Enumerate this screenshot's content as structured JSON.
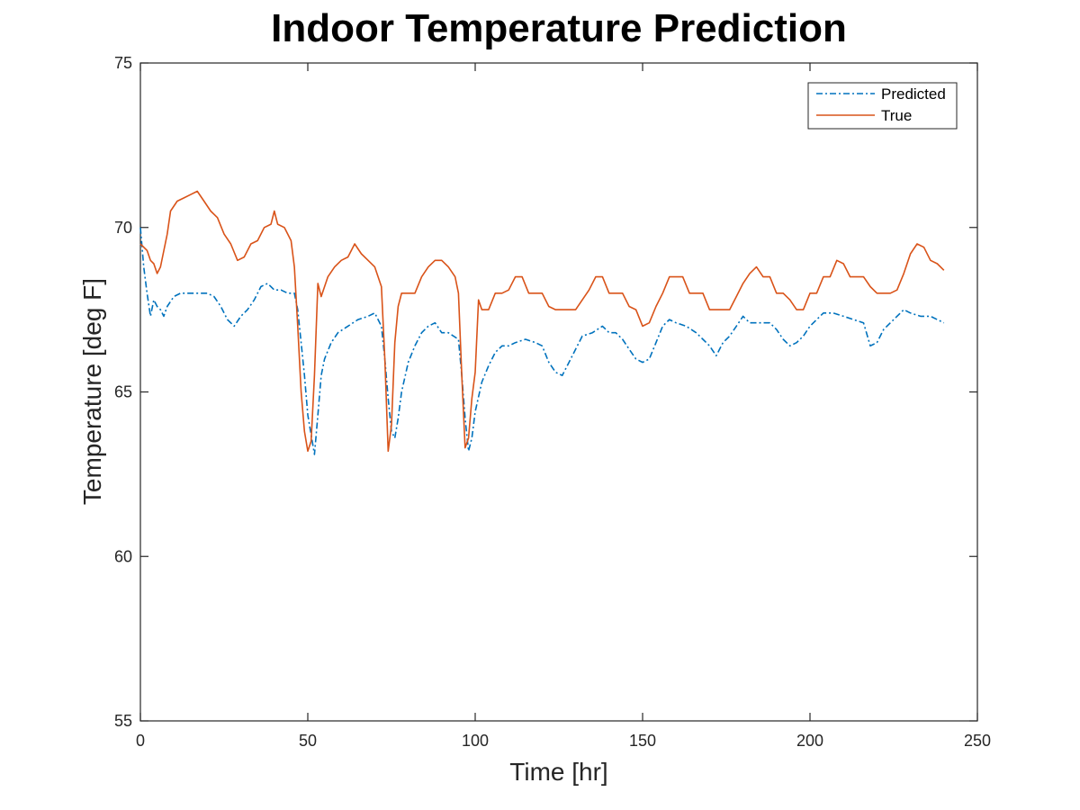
{
  "chart_data": {
    "type": "line",
    "title": "Indoor Temperature Prediction",
    "xlabel": "Time [hr]",
    "ylabel": "Temperature [deg F]",
    "xlim": [
      0,
      250
    ],
    "ylim": [
      55,
      75
    ],
    "xticks": [
      0,
      50,
      100,
      150,
      200,
      250
    ],
    "yticks": [
      55,
      60,
      65,
      70,
      75
    ],
    "grid": false,
    "legend_position": "top-right",
    "series": [
      {
        "name": "Predicted",
        "color": "#0072BD",
        "line_style": "dash-dot",
        "points": [
          [
            0,
            70.0
          ],
          [
            1,
            68.8
          ],
          [
            2,
            68.0
          ],
          [
            3,
            67.3
          ],
          [
            4,
            67.8
          ],
          [
            5,
            67.6
          ],
          [
            6,
            67.5
          ],
          [
            7,
            67.3
          ],
          [
            8,
            67.6
          ],
          [
            10,
            67.9
          ],
          [
            12,
            68.0
          ],
          [
            15,
            68.0
          ],
          [
            18,
            68.0
          ],
          [
            20,
            68.0
          ],
          [
            22,
            67.9
          ],
          [
            24,
            67.6
          ],
          [
            26,
            67.2
          ],
          [
            28,
            67.0
          ],
          [
            30,
            67.3
          ],
          [
            32,
            67.5
          ],
          [
            34,
            67.8
          ],
          [
            36,
            68.2
          ],
          [
            38,
            68.3
          ],
          [
            40,
            68.1
          ],
          [
            42,
            68.1
          ],
          [
            44,
            68.0
          ],
          [
            46,
            68.0
          ],
          [
            47,
            67.5
          ],
          [
            48,
            66.5
          ],
          [
            49,
            65.5
          ],
          [
            50,
            64.3
          ],
          [
            51,
            63.7
          ],
          [
            52,
            63.1
          ],
          [
            53,
            64.3
          ],
          [
            54,
            65.5
          ],
          [
            55,
            66.0
          ],
          [
            57,
            66.5
          ],
          [
            59,
            66.8
          ],
          [
            62,
            67.0
          ],
          [
            65,
            67.2
          ],
          [
            68,
            67.3
          ],
          [
            70,
            67.4
          ],
          [
            72,
            67.0
          ],
          [
            73,
            66.0
          ],
          [
            74,
            64.8
          ],
          [
            75,
            63.8
          ],
          [
            76,
            63.6
          ],
          [
            77,
            64.2
          ],
          [
            78,
            65.0
          ],
          [
            80,
            65.9
          ],
          [
            82,
            66.4
          ],
          [
            84,
            66.8
          ],
          [
            86,
            67.0
          ],
          [
            88,
            67.1
          ],
          [
            90,
            66.8
          ],
          [
            92,
            66.8
          ],
          [
            95,
            66.6
          ],
          [
            96,
            65.5
          ],
          [
            97,
            64.2
          ],
          [
            98,
            63.2
          ],
          [
            99,
            63.6
          ],
          [
            100,
            64.4
          ],
          [
            102,
            65.3
          ],
          [
            104,
            65.8
          ],
          [
            106,
            66.2
          ],
          [
            108,
            66.4
          ],
          [
            110,
            66.4
          ],
          [
            112,
            66.5
          ],
          [
            115,
            66.6
          ],
          [
            118,
            66.5
          ],
          [
            120,
            66.4
          ],
          [
            122,
            65.9
          ],
          [
            124,
            65.6
          ],
          [
            126,
            65.5
          ],
          [
            128,
            65.9
          ],
          [
            130,
            66.3
          ],
          [
            132,
            66.7
          ],
          [
            135,
            66.8
          ],
          [
            138,
            67.0
          ],
          [
            140,
            66.8
          ],
          [
            142,
            66.8
          ],
          [
            144,
            66.6
          ],
          [
            146,
            66.3
          ],
          [
            148,
            66.0
          ],
          [
            150,
            65.9
          ],
          [
            152,
            66.0
          ],
          [
            154,
            66.5
          ],
          [
            156,
            67.0
          ],
          [
            158,
            67.2
          ],
          [
            160,
            67.1
          ],
          [
            163,
            67.0
          ],
          [
            166,
            66.8
          ],
          [
            168,
            66.6
          ],
          [
            170,
            66.4
          ],
          [
            172,
            66.1
          ],
          [
            174,
            66.5
          ],
          [
            176,
            66.7
          ],
          [
            178,
            67.0
          ],
          [
            180,
            67.3
          ],
          [
            182,
            67.1
          ],
          [
            185,
            67.1
          ],
          [
            188,
            67.1
          ],
          [
            190,
            66.9
          ],
          [
            192,
            66.6
          ],
          [
            194,
            66.4
          ],
          [
            196,
            66.5
          ],
          [
            198,
            66.7
          ],
          [
            200,
            67.0
          ],
          [
            202,
            67.2
          ],
          [
            204,
            67.4
          ],
          [
            207,
            67.4
          ],
          [
            210,
            67.3
          ],
          [
            213,
            67.2
          ],
          [
            216,
            67.1
          ],
          [
            218,
            66.4
          ],
          [
            220,
            66.5
          ],
          [
            222,
            66.9
          ],
          [
            224,
            67.1
          ],
          [
            226,
            67.3
          ],
          [
            228,
            67.5
          ],
          [
            230,
            67.4
          ],
          [
            233,
            67.3
          ],
          [
            236,
            67.3
          ],
          [
            238,
            67.2
          ],
          [
            240,
            67.1
          ]
        ]
      },
      {
        "name": "True",
        "color": "#D95319",
        "line_style": "solid",
        "points": [
          [
            0,
            69.5
          ],
          [
            2,
            69.3
          ],
          [
            3,
            69.0
          ],
          [
            4,
            68.9
          ],
          [
            5,
            68.6
          ],
          [
            6,
            68.8
          ],
          [
            8,
            69.8
          ],
          [
            9,
            70.5
          ],
          [
            11,
            70.8
          ],
          [
            13,
            70.9
          ],
          [
            15,
            71.0
          ],
          [
            17,
            71.1
          ],
          [
            19,
            70.8
          ],
          [
            21,
            70.5
          ],
          [
            23,
            70.3
          ],
          [
            25,
            69.8
          ],
          [
            27,
            69.5
          ],
          [
            29,
            69.0
          ],
          [
            31,
            69.1
          ],
          [
            33,
            69.5
          ],
          [
            35,
            69.6
          ],
          [
            37,
            70.0
          ],
          [
            39,
            70.1
          ],
          [
            40,
            70.5
          ],
          [
            41,
            70.1
          ],
          [
            43,
            70.0
          ],
          [
            45,
            69.6
          ],
          [
            46,
            68.8
          ],
          [
            47,
            67.0
          ],
          [
            48,
            65.0
          ],
          [
            49,
            63.8
          ],
          [
            50,
            63.2
          ],
          [
            51,
            63.5
          ],
          [
            52,
            65.5
          ],
          [
            53,
            68.3
          ],
          [
            54,
            67.9
          ],
          [
            56,
            68.5
          ],
          [
            58,
            68.8
          ],
          [
            60,
            69.0
          ],
          [
            62,
            69.1
          ],
          [
            64,
            69.5
          ],
          [
            66,
            69.2
          ],
          [
            68,
            69.0
          ],
          [
            70,
            68.8
          ],
          [
            72,
            68.2
          ],
          [
            73,
            66.0
          ],
          [
            74,
            63.2
          ],
          [
            75,
            64.0
          ],
          [
            76,
            66.5
          ],
          [
            77,
            67.6
          ],
          [
            78,
            68.0
          ],
          [
            80,
            68.0
          ],
          [
            82,
            68.0
          ],
          [
            84,
            68.5
          ],
          [
            86,
            68.8
          ],
          [
            88,
            69.0
          ],
          [
            90,
            69.0
          ],
          [
            92,
            68.8
          ],
          [
            94,
            68.5
          ],
          [
            95,
            68.0
          ],
          [
            96,
            65.5
          ],
          [
            97,
            63.3
          ],
          [
            98,
            63.6
          ],
          [
            99,
            64.8
          ],
          [
            100,
            65.6
          ],
          [
            101,
            67.8
          ],
          [
            102,
            67.5
          ],
          [
            104,
            67.5
          ],
          [
            106,
            68.0
          ],
          [
            108,
            68.0
          ],
          [
            110,
            68.1
          ],
          [
            112,
            68.5
          ],
          [
            114,
            68.5
          ],
          [
            116,
            68.0
          ],
          [
            118,
            68.0
          ],
          [
            120,
            68.0
          ],
          [
            122,
            67.6
          ],
          [
            124,
            67.5
          ],
          [
            126,
            67.5
          ],
          [
            128,
            67.5
          ],
          [
            130,
            67.5
          ],
          [
            132,
            67.8
          ],
          [
            134,
            68.1
          ],
          [
            136,
            68.5
          ],
          [
            138,
            68.5
          ],
          [
            140,
            68.0
          ],
          [
            142,
            68.0
          ],
          [
            144,
            68.0
          ],
          [
            146,
            67.6
          ],
          [
            148,
            67.5
          ],
          [
            150,
            67.0
          ],
          [
            152,
            67.1
          ],
          [
            154,
            67.6
          ],
          [
            156,
            68.0
          ],
          [
            158,
            68.5
          ],
          [
            160,
            68.5
          ],
          [
            162,
            68.5
          ],
          [
            164,
            68.0
          ],
          [
            166,
            68.0
          ],
          [
            168,
            68.0
          ],
          [
            170,
            67.5
          ],
          [
            172,
            67.5
          ],
          [
            174,
            67.5
          ],
          [
            176,
            67.5
          ],
          [
            178,
            67.9
          ],
          [
            180,
            68.3
          ],
          [
            182,
            68.6
          ],
          [
            184,
            68.8
          ],
          [
            186,
            68.5
          ],
          [
            188,
            68.5
          ],
          [
            190,
            68.0
          ],
          [
            192,
            68.0
          ],
          [
            194,
            67.8
          ],
          [
            196,
            67.5
          ],
          [
            198,
            67.5
          ],
          [
            200,
            68.0
          ],
          [
            202,
            68.0
          ],
          [
            204,
            68.5
          ],
          [
            206,
            68.5
          ],
          [
            208,
            69.0
          ],
          [
            210,
            68.9
          ],
          [
            212,
            68.5
          ],
          [
            214,
            68.5
          ],
          [
            216,
            68.5
          ],
          [
            218,
            68.2
          ],
          [
            220,
            68.0
          ],
          [
            222,
            68.0
          ],
          [
            224,
            68.0
          ],
          [
            226,
            68.1
          ],
          [
            228,
            68.6
          ],
          [
            230,
            69.2
          ],
          [
            232,
            69.5
          ],
          [
            234,
            69.4
          ],
          [
            236,
            69.0
          ],
          [
            238,
            68.9
          ],
          [
            240,
            68.7
          ]
        ]
      }
    ]
  }
}
